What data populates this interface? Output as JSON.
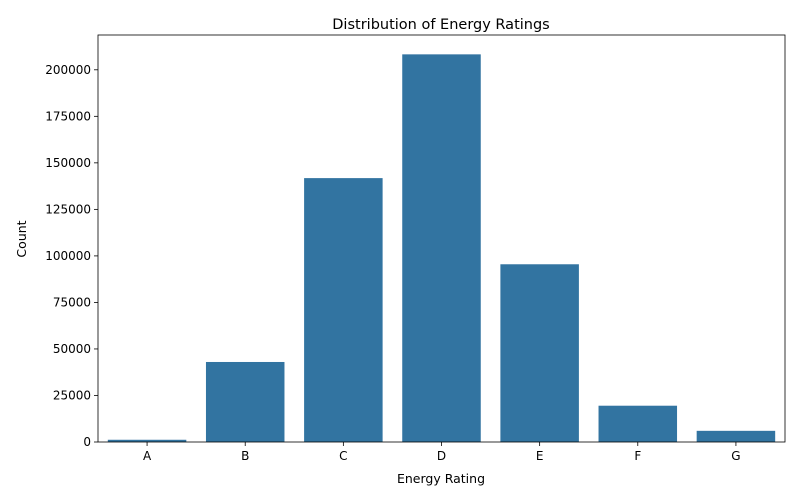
{
  "chart_data": {
    "type": "bar",
    "title": "Distribution of Energy Ratings",
    "xlabel": "Energy Rating",
    "ylabel": "Count",
    "categories": [
      "A",
      "B",
      "C",
      "D",
      "E",
      "F",
      "G"
    ],
    "values": [
      1200,
      43000,
      141800,
      208300,
      95500,
      19500,
      6000
    ],
    "ylim": [
      0,
      218700
    ],
    "yticks": [
      0,
      25000,
      50000,
      75000,
      100000,
      125000,
      150000,
      175000,
      200000
    ],
    "grid": false,
    "legend": "none",
    "bar_color": "#3274a1"
  }
}
